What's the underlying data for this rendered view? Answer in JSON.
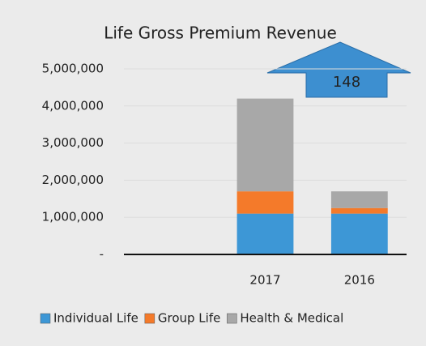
{
  "chart_data": {
    "type": "bar",
    "stacked": true,
    "title": "Life Gross Premium Revenue",
    "categories": [
      null,
      "2017",
      "2016"
    ],
    "series": [
      {
        "name": "Individual Life",
        "color": "#3d97d6",
        "values": [
          null,
          1100000,
          1100000
        ]
      },
      {
        "name": "Group Life",
        "color": "#f47a2a",
        "values": [
          null,
          600000,
          150000
        ]
      },
      {
        "name": "Health & Medical",
        "color": "#a8a8a8",
        "values": [
          null,
          2500000,
          450000
        ]
      }
    ],
    "ylim": [
      0,
      5000000
    ],
    "yticks": [
      {
        "value": 0,
        "label": "-"
      },
      {
        "value": 1000000,
        "label": "1,000,000"
      },
      {
        "value": 2000000,
        "label": "2,000,000"
      },
      {
        "value": 3000000,
        "label": "3,000,000"
      },
      {
        "value": 4000000,
        "label": "4,000,000"
      },
      {
        "value": 5000000,
        "label": "5,000,000"
      }
    ],
    "annotation": "148",
    "legend": "bottom"
  }
}
